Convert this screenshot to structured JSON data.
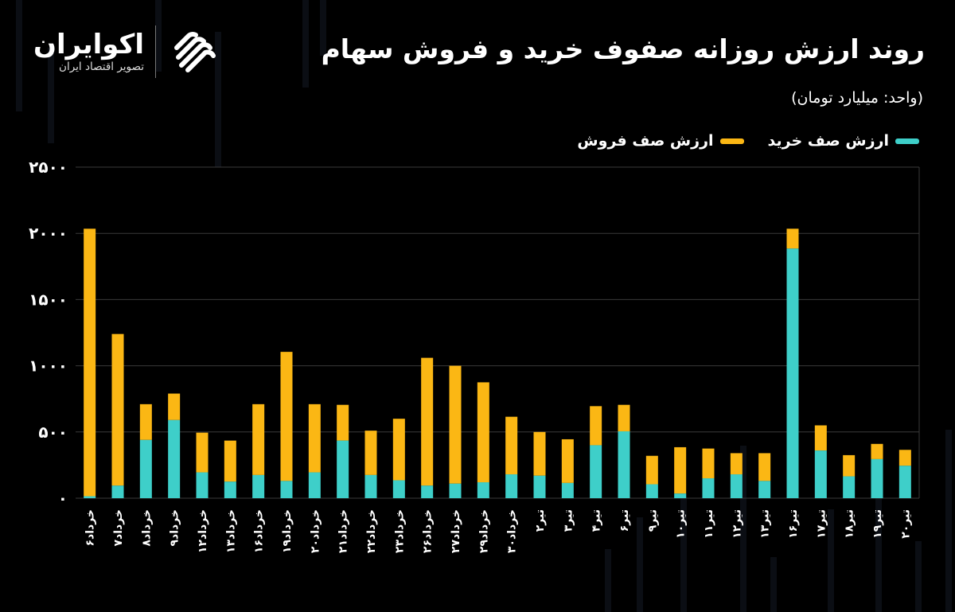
{
  "header": {
    "title": "روند ارزش روزانه صفوف خرید و فروش سهام",
    "unit": "(واحد: میلیارد تومان)"
  },
  "logo": {
    "name": "اکوایران",
    "subtitle": "تصویر اقتصاد ایران",
    "icon": "ecoiran-swirl-logo"
  },
  "colors": {
    "background": "#000000",
    "buy": "#3ecfc9",
    "sell": "#fbb714",
    "grid": "#3a3a3a",
    "text": "#ffffff"
  },
  "chart_data": {
    "type": "bar",
    "stacked": true,
    "title": "روند ارزش روزانه صفوف خرید و فروش سهام",
    "unit_label": "(واحد: میلیارد تومان)",
    "legend_position": "top-right",
    "grid": true,
    "ylim": [
      0,
      2500
    ],
    "yticks": [
      0,
      500,
      1000,
      1500,
      2000,
      2500
    ],
    "ytick_labels": [
      "۰",
      "۵۰۰",
      "۱۰۰۰",
      "۱۵۰۰",
      "۲۰۰۰",
      "۲۵۰۰"
    ],
    "categories": [
      "خرداد۶",
      "خرداد۷",
      "خرداد۸",
      "خرداد۹",
      "خرداد۱۲",
      "خرداد۱۳",
      "خرداد۱۶",
      "خرداد۱۹",
      "خرداد۲۰",
      "خرداد۲۱",
      "خرداد۲۲",
      "خرداد۲۳",
      "خرداد۲۶",
      "خرداد۲۷",
      "خرداد۲۹",
      "خرداد۳۰",
      "تیر۲",
      "تیر۳",
      "تیر۴",
      "تیر۶",
      "تیر۹",
      "تیر۱۰",
      "تیر۱۱",
      "تیر۱۲",
      "تیر۱۳",
      "تیر۱۶",
      "تیر۱۷",
      "تیر۱۸",
      "تیر۱۹",
      "تیر۲۰"
    ],
    "series": [
      {
        "name": "ارزش صف خرید",
        "color": "#3ecfc9",
        "values": [
          15,
          95,
          440,
          590,
          195,
          125,
          175,
          130,
          195,
          435,
          175,
          135,
          95,
          110,
          120,
          180,
          170,
          115,
          400,
          505,
          105,
          35,
          150,
          180,
          130,
          1885,
          360,
          165,
          295,
          245
        ]
      },
      {
        "name": "ارزش صف فروش",
        "color": "#fbb714",
        "values": [
          2020,
          1145,
          270,
          200,
          300,
          310,
          535,
          975,
          515,
          270,
          335,
          465,
          965,
          890,
          755,
          435,
          330,
          330,
          295,
          200,
          215,
          350,
          225,
          160,
          210,
          150,
          190,
          160,
          115,
          120
        ]
      }
    ]
  }
}
